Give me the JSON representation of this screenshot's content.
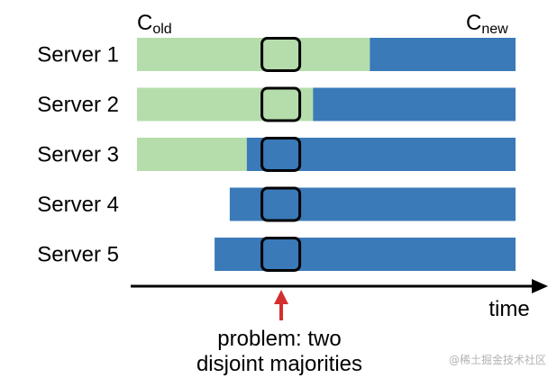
{
  "config_labels": {
    "old_letter": "C",
    "old_sub": "old",
    "new_letter": "C",
    "new_sub": "new"
  },
  "servers": [
    {
      "name": "Server 1",
      "start": 0.0,
      "switch": 0.615
    },
    {
      "name": "Server 2",
      "start": 0.0,
      "switch": 0.465
    },
    {
      "name": "Server 3",
      "start": 0.0,
      "switch": 0.29
    },
    {
      "name": "Server 4",
      "start": 0.245,
      "switch": 0.245
    },
    {
      "name": "Server 5",
      "start": 0.205,
      "switch": 0.205
    }
  ],
  "window": {
    "start": 0.33,
    "end": 0.43
  },
  "axis_label": "time",
  "caption_lines": [
    "problem: two",
    "disjoint majorities"
  ],
  "watermark": "@稀土掘金技术社区",
  "colors": {
    "old_config": "#b5ddab",
    "new_config": "#3a7ab8",
    "window_stroke": "#000000",
    "arrow": "#d32f2f",
    "axis": "#000000"
  }
}
